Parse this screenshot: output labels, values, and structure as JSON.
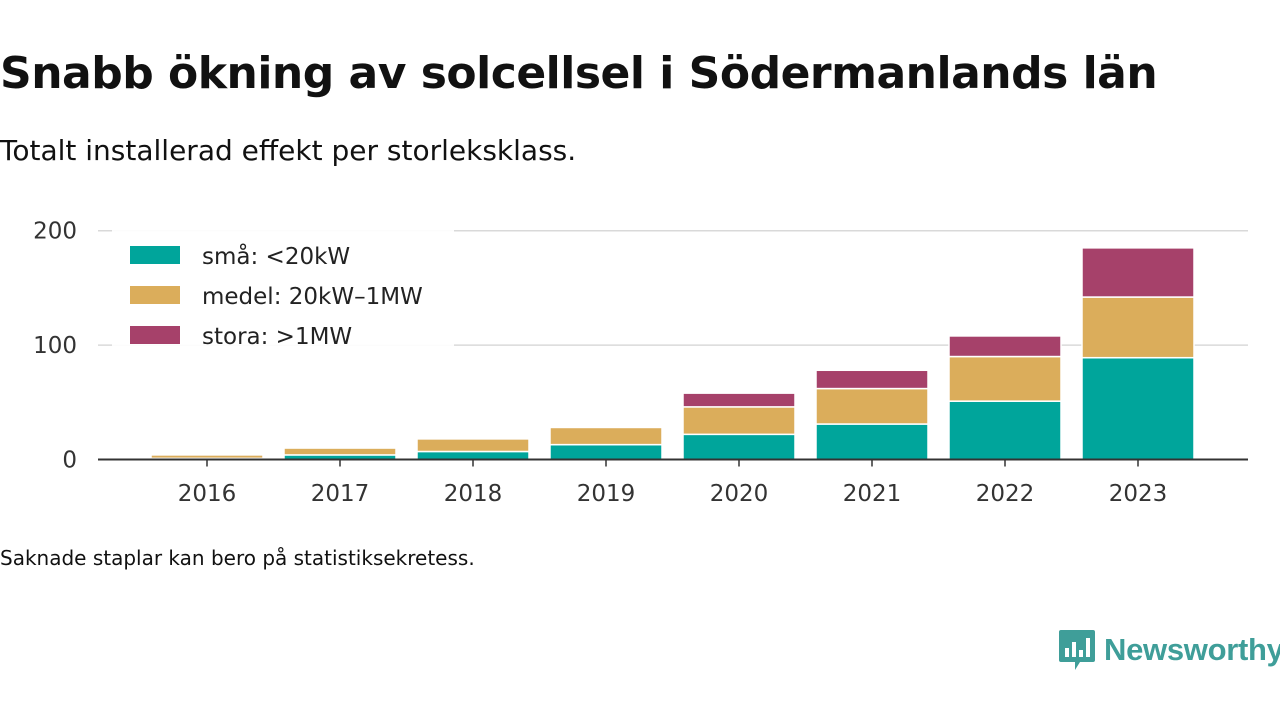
{
  "title": "Snabb ökning av solcellsel i Södermanlands län",
  "subtitle": "Totalt installerad effekt per storleksklass.",
  "note": "Saknade staplar kan bero på statistiksekretess.",
  "brand": {
    "name": "Newsworthy",
    "color": "#3f9e99",
    "icon": "newsworthy-logo-icon"
  },
  "chart_data": {
    "type": "bar",
    "stacked": true,
    "categories": [
      "2016",
      "2017",
      "2018",
      "2019",
      "2020",
      "2021",
      "2022",
      "2023"
    ],
    "series": [
      {
        "name": "små: <20kW",
        "color": "#00a59b",
        "values": [
          1,
          4,
          7,
          13,
          22,
          31,
          51,
          89
        ]
      },
      {
        "name": "medel: 20kW–1MW",
        "color": "#dbad5b",
        "values": [
          3,
          6,
          11,
          15,
          24,
          31,
          39,
          53
        ]
      },
      {
        "name": "stora: >1MW",
        "color": "#a6416a",
        "values": [
          0,
          0,
          0,
          0,
          12,
          16,
          18,
          43
        ]
      }
    ],
    "ylim": [
      0,
      200
    ],
    "yticks": [
      0,
      100,
      200
    ],
    "grid": true,
    "legend_position": "top-left",
    "xlabel": "",
    "ylabel": ""
  }
}
